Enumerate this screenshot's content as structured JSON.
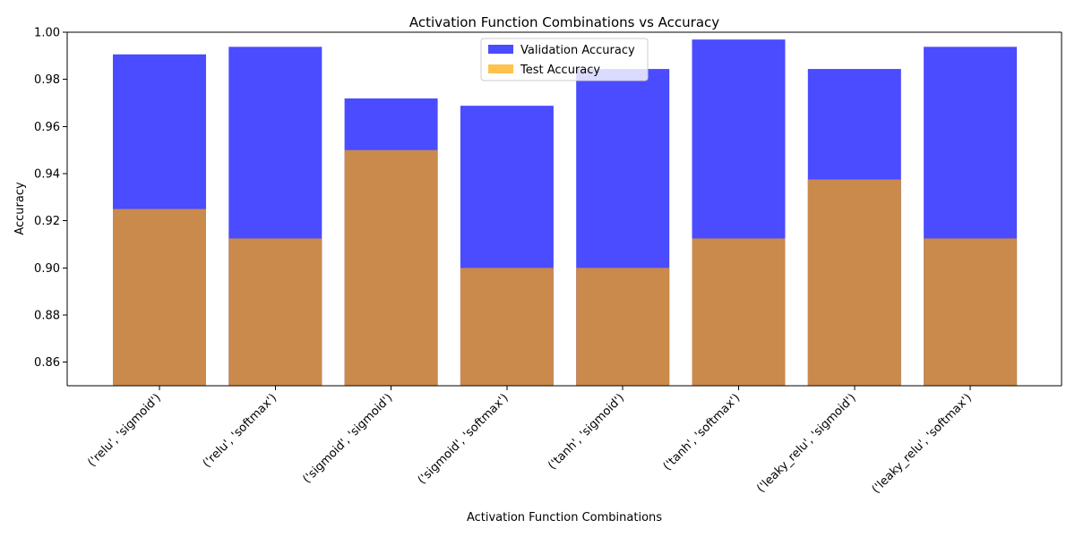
{
  "chart_data": {
    "type": "bar",
    "title": "Activation Function Combinations vs Accuracy",
    "xlabel": "Activation Function Combinations",
    "ylabel": "Accuracy",
    "ylim": [
      0.85,
      1.0
    ],
    "yticks": [
      0.86,
      0.88,
      0.9,
      0.92,
      0.94,
      0.96,
      0.98,
      1.0
    ],
    "ytick_labels": [
      "0.86",
      "0.88",
      "0.90",
      "0.92",
      "0.94",
      "0.96",
      "0.98",
      "1.00"
    ],
    "categories": [
      "('relu', 'sigmoid')",
      "('relu', 'softmax')",
      "('sigmoid', 'sigmoid')",
      "('sigmoid', 'softmax')",
      "('tanh', 'sigmoid')",
      "('tanh', 'softmax')",
      "('leaky_relu', 'sigmoid')",
      "('leaky_relu', 'softmax')"
    ],
    "series": [
      {
        "name": "Validation Accuracy",
        "color": "#4b4bff",
        "values": [
          0.9906,
          0.9938,
          0.9719,
          0.9688,
          0.9844,
          0.9969,
          0.9844,
          0.9938
        ]
      },
      {
        "name": "Test Accuracy",
        "color": "#ca8a4c",
        "legend_color": "#ffc24d",
        "values": [
          0.925,
          0.9125,
          0.95,
          0.9,
          0.9,
          0.9125,
          0.9375,
          0.9125
        ]
      }
    ],
    "legend_position": "top-center",
    "grid": false
  }
}
